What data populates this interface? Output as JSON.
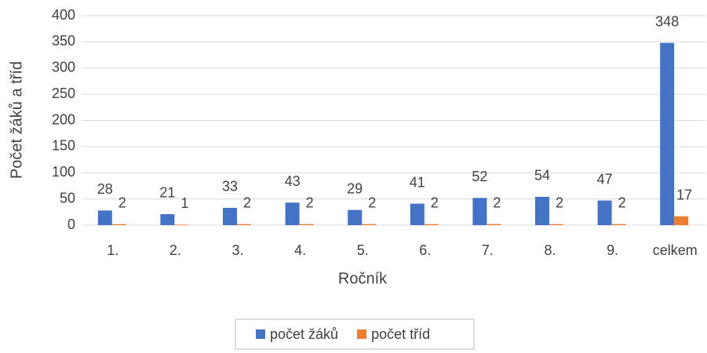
{
  "chart_data": {
    "type": "bar",
    "categories": [
      "1.",
      "2.",
      "3.",
      "4.",
      "5.",
      "6.",
      "7.",
      "8.",
      "9.",
      "celkem"
    ],
    "series": [
      {
        "name": "počet žáků",
        "color": "#4472c4",
        "values": [
          28,
          21,
          33,
          43,
          29,
          41,
          52,
          54,
          47,
          348
        ]
      },
      {
        "name": "počet tříd",
        "color": "#ed7d31",
        "values": [
          2,
          1,
          2,
          2,
          2,
          2,
          2,
          2,
          2,
          17
        ]
      }
    ],
    "x_label": "Ročník",
    "y_label": "Počet žáků a tříd",
    "ylim": [
      0,
      400
    ],
    "yticks": [
      0,
      50,
      100,
      150,
      200,
      250,
      300,
      350,
      400
    ],
    "grid": true,
    "legend": "bottom"
  }
}
